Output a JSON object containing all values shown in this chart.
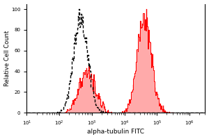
{
  "title": "",
  "xlabel": "alpha-tubulin FITC",
  "ylabel": "Relative Cell Count",
  "xlim": [
    10,
    3000000
  ],
  "ylim": [
    0,
    105
  ],
  "yticks": [
    0,
    20,
    40,
    60,
    80,
    100
  ],
  "ytick_labels": [
    "0",
    "20",
    "40",
    "60",
    "80",
    "100"
  ],
  "background_color": "#ffffff",
  "isotype_color": "black",
  "antibody_color": "red",
  "antibody_fill": "#ffaaaa",
  "iso_log_mean": 2.65,
  "iso_log_std": 0.22,
  "iso_n": 8000,
  "ab_peak1_mean": 2.85,
  "ab_peak1_std": 0.25,
  "ab_peak1_n": 2500,
  "ab_peak2_mean": 4.6,
  "ab_peak2_std": 0.22,
  "ab_peak2_n": 5000,
  "n_bins": 300,
  "log_min": 1.0,
  "log_max": 6.5
}
